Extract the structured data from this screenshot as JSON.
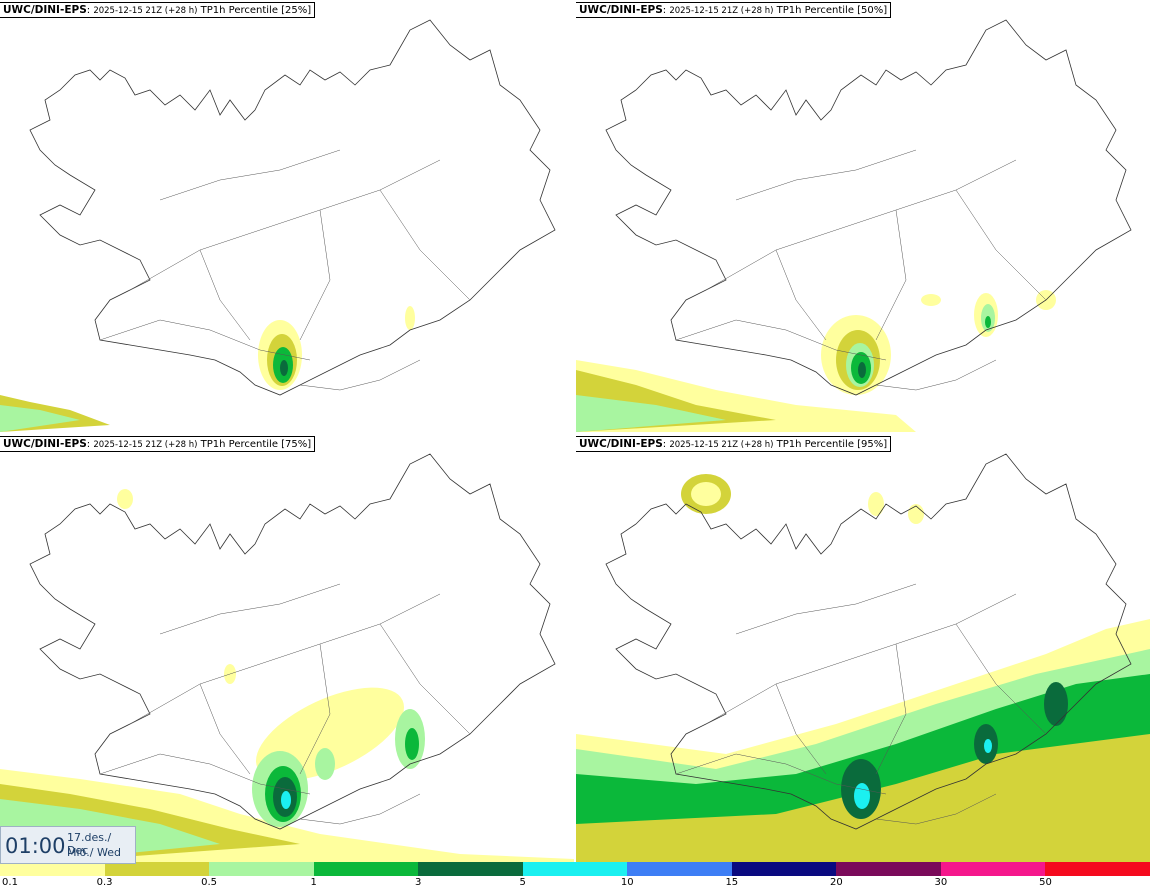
{
  "panels": [
    {
      "source": "UWC/DINI-EPS",
      "run": "2025-12-15 21Z (+28 h)",
      "field": "TP1h Percentile [25%]"
    },
    {
      "source": "UWC/DINI-EPS",
      "run": "2025-12-15 21Z (+28 h)",
      "field": "TP1h Percentile [50%]"
    },
    {
      "source": "UWC/DINI-EPS",
      "run": "2025-12-15 21Z (+28 h)",
      "field": "TP1h Percentile [75%]"
    },
    {
      "source": "UWC/DINI-EPS",
      "run": "2025-12-15 21Z (+28 h)",
      "field": "TP1h Percentile [95%]"
    }
  ],
  "valid_time": {
    "time": "01:00",
    "date_line1": "17.des./ Dec",
    "date_line2": "Mið./ Wed"
  },
  "colorbar": {
    "labels": [
      "0.1",
      "0.3",
      "0.5",
      "1",
      "3",
      "5",
      "10",
      "15",
      "20",
      "30",
      "50"
    ],
    "colors": [
      "#ffff9e",
      "#d3d33a",
      "#a8f5a0",
      "#0bb83a",
      "#0a6b3c",
      "#1bf0f0",
      "#3d7ef5",
      "#0a0a80",
      "#7a0a5a",
      "#f5178c",
      "#f50a1e"
    ]
  }
}
